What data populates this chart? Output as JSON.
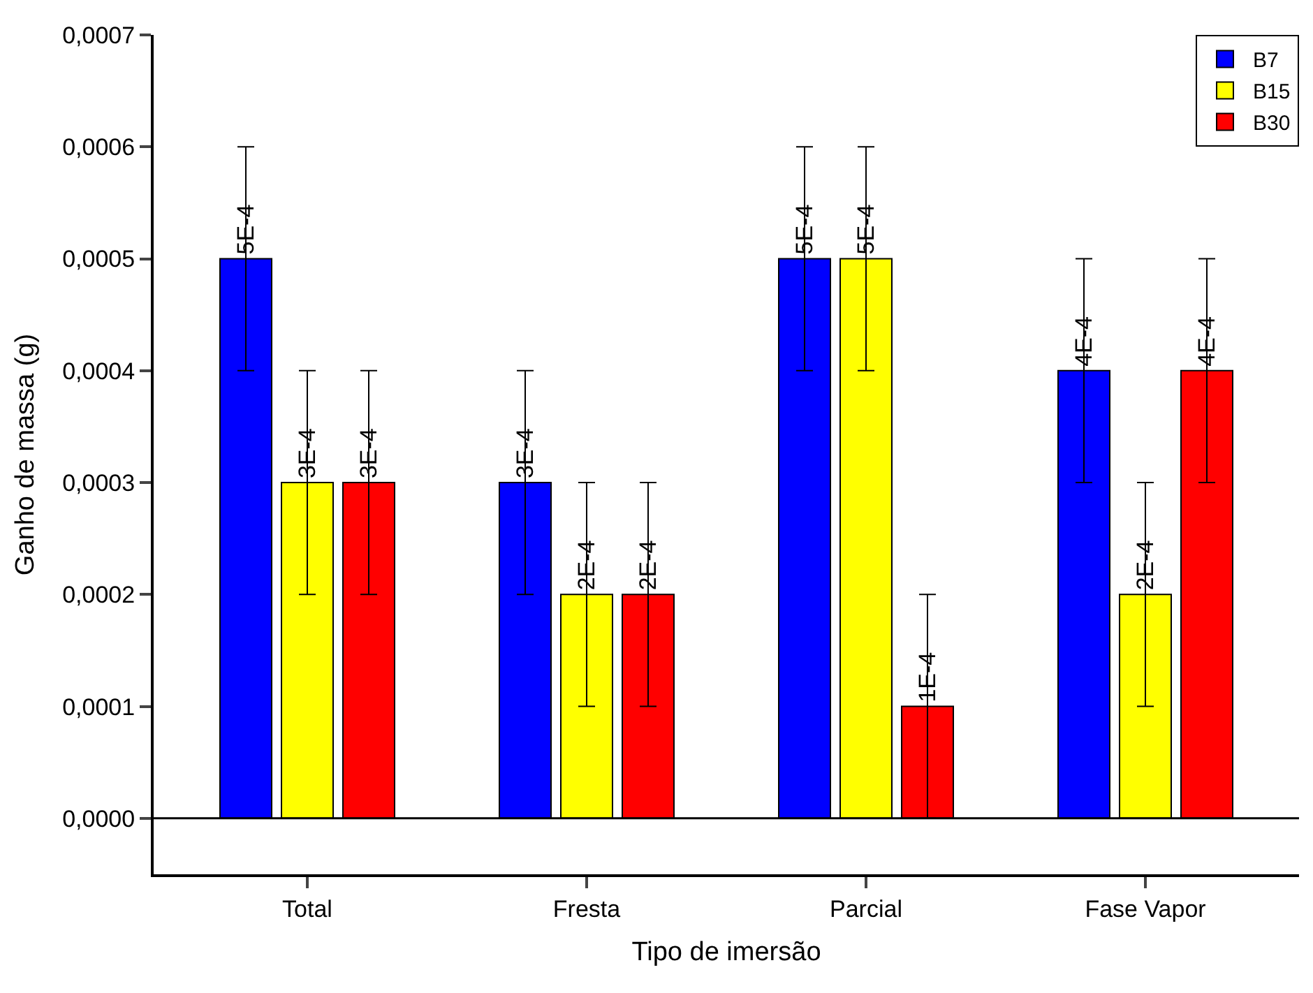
{
  "chart_data": {
    "type": "bar",
    "xlabel": "Tipo de imersão",
    "ylabel": "Ganho de massa (g)",
    "categories": [
      "Total",
      "Fresta",
      "Parcial",
      "Fase Vapor"
    ],
    "series": [
      {
        "name": "B7",
        "color": "#0000ff",
        "values": [
          0.0005,
          0.0003,
          0.0005,
          0.0004
        ],
        "errors": [
          0.0001,
          0.0001,
          0.0001,
          0.0001
        ],
        "value_labels": [
          "5E-4",
          "3E-4",
          "5E-4",
          "4E-4"
        ]
      },
      {
        "name": "B15",
        "color": "#ffff00",
        "values": [
          0.0003,
          0.0002,
          0.0005,
          0.0002
        ],
        "errors": [
          0.0001,
          0.0001,
          0.0001,
          0.0001
        ],
        "value_labels": [
          "3E-4",
          "2E-4",
          "5E-4",
          "2E-4"
        ]
      },
      {
        "name": "B30",
        "color": "#ff0000",
        "values": [
          0.0003,
          0.0002,
          0.0001,
          0.0004
        ],
        "errors": [
          0.0001,
          0.0001,
          0.0001,
          0.0001
        ],
        "value_labels": [
          "3E-4",
          "2E-4",
          "1E-4",
          "4E-4"
        ]
      }
    ],
    "ylim": [
      -5e-05,
      0.0007
    ],
    "yticks": [
      {
        "value": 0,
        "label": "0,0000"
      },
      {
        "value": 0.0001,
        "label": "0,0001"
      },
      {
        "value": 0.0002,
        "label": "0,0002"
      },
      {
        "value": 0.0003,
        "label": "0,0003"
      },
      {
        "value": 0.0004,
        "label": "0,0004"
      },
      {
        "value": 0.0005,
        "label": "0,0005"
      },
      {
        "value": 0.0006,
        "label": "0,0006"
      },
      {
        "value": 0.0007,
        "label": "0,0007"
      }
    ],
    "ref_lines": [
      {
        "axis": "y",
        "value": 0,
        "color": "#000000"
      }
    ],
    "legend": "top right"
  }
}
